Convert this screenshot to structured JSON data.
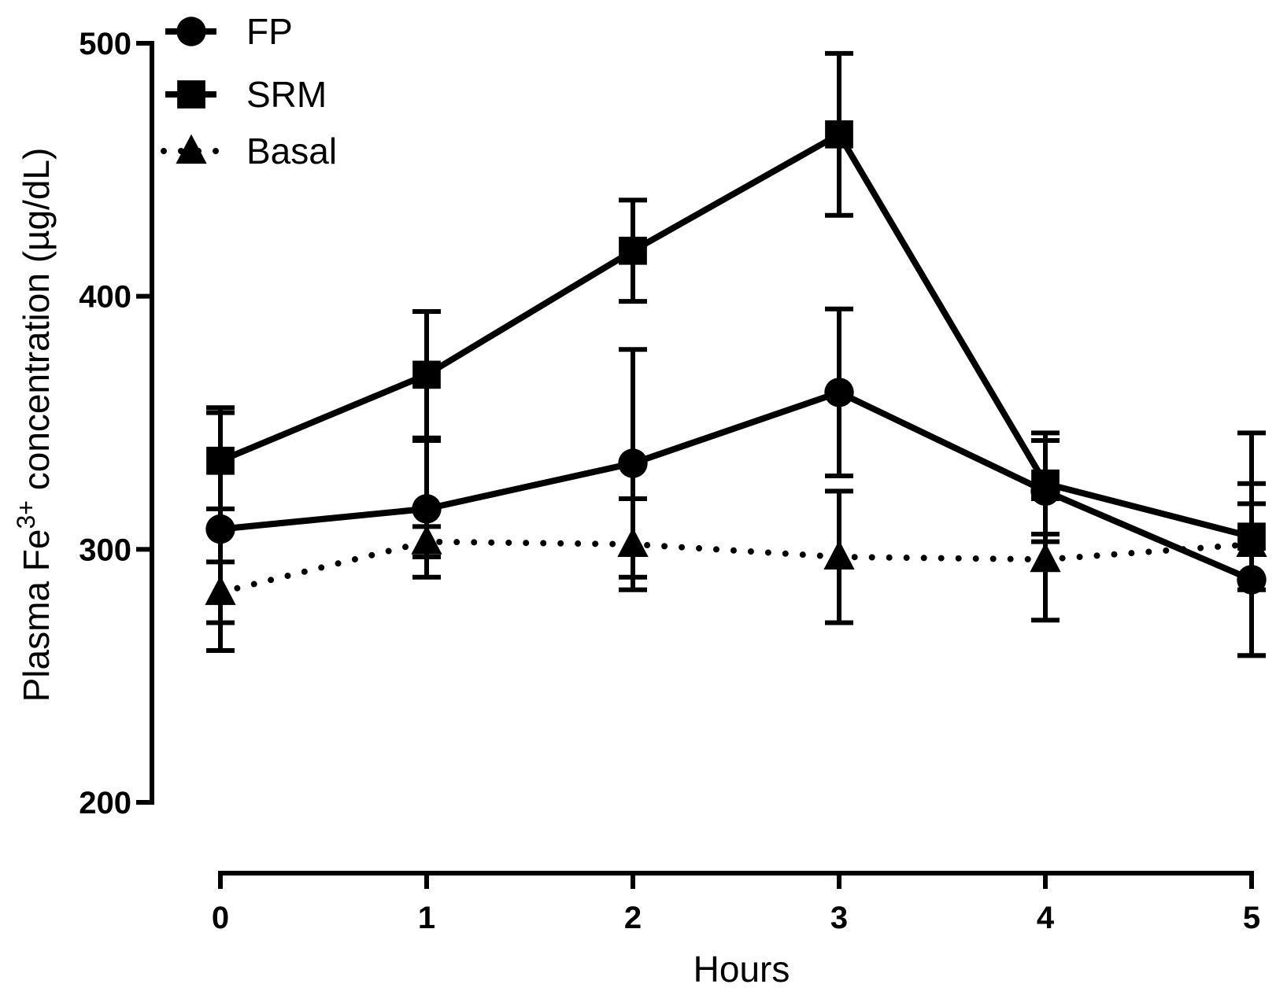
{
  "chart_data": {
    "type": "line",
    "title": "",
    "xlabel": "Hours",
    "ylabel_prefix": "Plasma  Fe",
    "ylabel_superscript": "3+",
    "ylabel_suffix": " concentration (µg/dL)",
    "x": [
      0,
      1,
      2,
      3,
      4,
      5
    ],
    "x_tick_labels": [
      "0",
      "1",
      "2",
      "3",
      "4",
      "5"
    ],
    "y_ticks": [
      200,
      300,
      400,
      500
    ],
    "y_tick_labels": [
      "200",
      "300",
      "400",
      "500"
    ],
    "ylim": [
      200,
      500
    ],
    "xlim": [
      0,
      5
    ],
    "grid": false,
    "legend_position": "top-left",
    "series": [
      {
        "name": "FP",
        "marker": "circle",
        "line_style": "solid",
        "values": [
          308,
          316,
          334,
          362,
          323,
          288
        ],
        "error": [
          48,
          27,
          45,
          33,
          20,
          30
        ]
      },
      {
        "name": "SRM",
        "marker": "square",
        "line_style": "solid",
        "values": [
          335,
          369,
          418,
          464,
          326,
          305
        ],
        "error": [
          19,
          25,
          20,
          32,
          20,
          21
        ]
      },
      {
        "name": "Basal",
        "marker": "triangle",
        "line_style": "dotted",
        "values": [
          283,
          303,
          302,
          297,
          296,
          302
        ],
        "error": [
          12,
          6,
          18,
          26,
          24,
          44
        ]
      }
    ]
  }
}
